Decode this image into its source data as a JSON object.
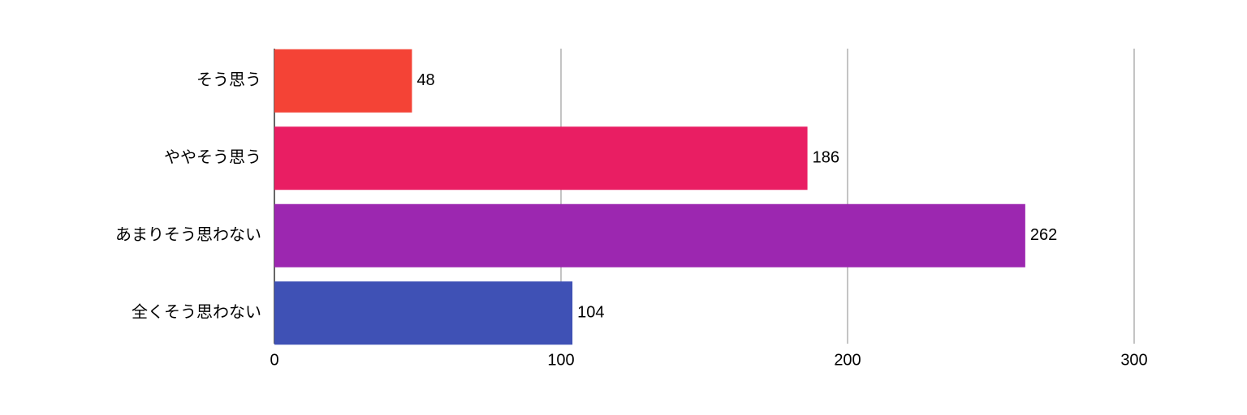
{
  "chart_data": {
    "type": "hbar",
    "categories": [
      "そう思う",
      "ややそう思う",
      "あまりそう思わない",
      "全くそう思わない"
    ],
    "values": [
      48,
      186,
      262,
      104
    ],
    "colors": [
      "#f44336",
      "#e91e63",
      "#9c27b0",
      "#3f51b5"
    ],
    "xlim": [
      0,
      300
    ],
    "xticks": [
      0,
      100,
      200,
      300
    ],
    "grid": true
  }
}
